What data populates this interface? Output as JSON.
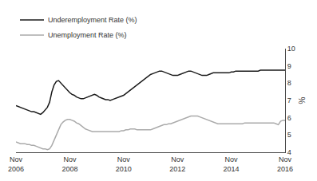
{
  "chart_data": {
    "type": "line",
    "ylabel": "%",
    "categories": [
      "Nov\n2006",
      null,
      null,
      null,
      null,
      null,
      null,
      null,
      null,
      null,
      null,
      null,
      null,
      null,
      null,
      null,
      null,
      null,
      null,
      null,
      null,
      null,
      null,
      null,
      "Nov\n2008",
      null,
      null,
      null,
      null,
      null,
      null,
      null,
      null,
      null,
      null,
      null,
      null,
      null,
      null,
      null,
      null,
      null,
      null,
      null,
      null,
      null,
      null,
      null,
      "Nov\n2010",
      null,
      null,
      null,
      null,
      null,
      null,
      null,
      null,
      null,
      null,
      null,
      null,
      null,
      null,
      null,
      null,
      null,
      null,
      null,
      null,
      null,
      null,
      null,
      "Nov\n2012",
      null,
      null,
      null,
      null,
      null,
      null,
      null,
      null,
      null,
      null,
      null,
      null,
      null,
      null,
      null,
      null,
      null,
      null,
      null,
      null,
      null,
      null,
      null,
      "Nov\n2014",
      null,
      null,
      null,
      null,
      null,
      null,
      null,
      null,
      null,
      null,
      null,
      null,
      null,
      null,
      null,
      null,
      null,
      null,
      null,
      null,
      null,
      null,
      null,
      "Nov\n2016"
    ],
    "ylim": [
      4,
      10
    ],
    "yticks": [
      4,
      5,
      6,
      7,
      8,
      9,
      10
    ],
    "grid": false,
    "legend": "upper left",
    "series": [
      {
        "name": "Underemployment Rate (%)",
        "color": "#1a1a1a",
        "values": [
          6.7,
          6.65,
          6.6,
          6.55,
          6.5,
          6.45,
          6.4,
          6.35,
          6.35,
          6.3,
          6.25,
          6.2,
          6.3,
          6.45,
          6.6,
          6.9,
          7.5,
          7.9,
          8.1,
          8.15,
          8.0,
          7.85,
          7.7,
          7.6,
          7.45,
          7.35,
          7.3,
          7.2,
          7.15,
          7.1,
          7.1,
          7.15,
          7.2,
          7.25,
          7.3,
          7.35,
          7.3,
          7.2,
          7.15,
          7.1,
          7.05,
          7.05,
          7.0,
          7.05,
          7.1,
          7.15,
          7.2,
          7.25,
          7.3,
          7.4,
          7.5,
          7.6,
          7.7,
          7.8,
          7.9,
          8.0,
          8.1,
          8.2,
          8.3,
          8.4,
          8.5,
          8.55,
          8.6,
          8.65,
          8.7,
          8.7,
          8.65,
          8.6,
          8.55,
          8.5,
          8.45,
          8.45,
          8.45,
          8.5,
          8.55,
          8.6,
          8.65,
          8.7,
          8.7,
          8.65,
          8.6,
          8.55,
          8.5,
          8.45,
          8.45,
          8.45,
          8.5,
          8.55,
          8.6,
          8.6,
          8.6,
          8.6,
          8.6,
          8.6,
          8.6,
          8.6,
          8.65,
          8.65,
          8.7,
          8.7,
          8.7,
          8.7,
          8.7,
          8.7,
          8.7,
          8.7,
          8.7,
          8.7,
          8.7,
          8.75,
          8.75,
          8.75,
          8.75,
          8.75,
          8.75,
          8.75,
          8.75,
          8.75,
          8.75,
          8.75,
          8.75
        ]
      },
      {
        "name": "Unemployment Rate (%)",
        "color": "#aaaaaa",
        "values": [
          4.6,
          4.55,
          4.5,
          4.5,
          4.5,
          4.45,
          4.45,
          4.4,
          4.4,
          4.35,
          4.3,
          4.25,
          4.2,
          4.2,
          4.15,
          4.2,
          4.4,
          4.7,
          5.0,
          5.3,
          5.6,
          5.75,
          5.85,
          5.9,
          5.9,
          5.85,
          5.8,
          5.7,
          5.65,
          5.55,
          5.45,
          5.35,
          5.3,
          5.25,
          5.2,
          5.2,
          5.2,
          5.2,
          5.2,
          5.2,
          5.2,
          5.2,
          5.2,
          5.2,
          5.2,
          5.2,
          5.2,
          5.25,
          5.25,
          5.3,
          5.3,
          5.35,
          5.35,
          5.35,
          5.3,
          5.3,
          5.3,
          5.3,
          5.3,
          5.3,
          5.3,
          5.35,
          5.4,
          5.45,
          5.5,
          5.55,
          5.6,
          5.6,
          5.65,
          5.65,
          5.7,
          5.75,
          5.8,
          5.85,
          5.9,
          5.95,
          6.0,
          6.05,
          6.1,
          6.1,
          6.1,
          6.1,
          6.05,
          6.0,
          5.95,
          5.9,
          5.85,
          5.8,
          5.75,
          5.7,
          5.65,
          5.65,
          5.65,
          5.65,
          5.65,
          5.65,
          5.65,
          5.65,
          5.65,
          5.65,
          5.65,
          5.65,
          5.7,
          5.7,
          5.7,
          5.7,
          5.7,
          5.7,
          5.7,
          5.7,
          5.7,
          5.7,
          5.7,
          5.7,
          5.7,
          5.7,
          5.65,
          5.6,
          5.8,
          5.85,
          5.85
        ]
      }
    ]
  }
}
